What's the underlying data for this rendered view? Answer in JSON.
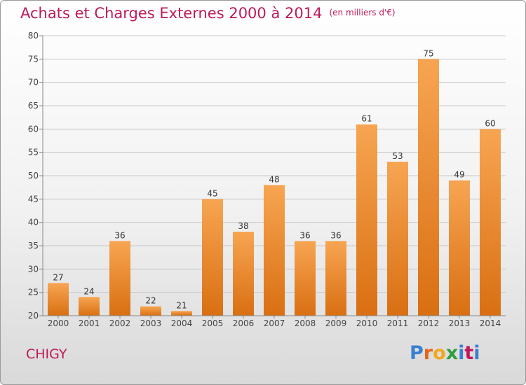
{
  "header": {
    "title": "Achats et Charges Externes 2000 à 2014",
    "unit": "(en milliers d'€)"
  },
  "footer": {
    "commune": "CHIGY",
    "logo_letters": [
      "P",
      "r",
      "o",
      "x",
      "i",
      "t",
      "i"
    ],
    "logo_colors": [
      "#3a7fd0",
      "#e8641b",
      "#f0a820",
      "#2e9e3f",
      "#3a7fd0",
      "#c0185a",
      "#3a7fd0"
    ]
  },
  "chart_data": {
    "type": "bar",
    "categories": [
      "2000",
      "2001",
      "2002",
      "2003",
      "2004",
      "2005",
      "2006",
      "2007",
      "2008",
      "2009",
      "2010",
      "2011",
      "2012",
      "2013",
      "2014"
    ],
    "values": [
      27,
      24,
      36,
      22,
      21,
      45,
      38,
      48,
      36,
      36,
      61,
      53,
      75,
      49,
      60
    ],
    "title": "Achats et Charges Externes 2000 à 2014",
    "xlabel": "",
    "ylabel": "",
    "ylim": [
      20,
      80
    ],
    "yticks": [
      20,
      25,
      30,
      35,
      40,
      45,
      50,
      55,
      60,
      65,
      70,
      75,
      80
    ],
    "grid": true,
    "bar_color_top": "#f7a552",
    "bar_color_bottom": "#d96f12",
    "grid_color": "#c8c8c8"
  }
}
